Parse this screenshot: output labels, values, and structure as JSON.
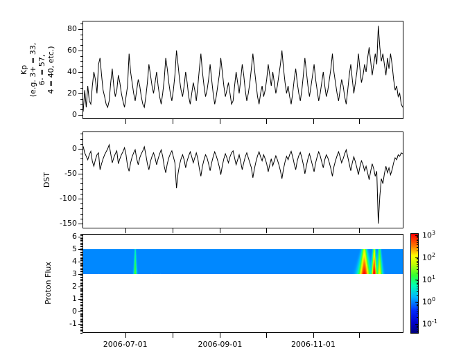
{
  "figure": {
    "background": "#ffffff",
    "line_color": "#000000"
  },
  "xaxis": {
    "days_total": 210,
    "month_tick_days": [
      28,
      59,
      90,
      120,
      151,
      181
    ],
    "labeled_ticks": [
      {
        "day": 28,
        "label": "2006-07-01"
      },
      {
        "day": 90,
        "label": "2006-09-01"
      },
      {
        "day": 151,
        "label": "2006-11-01"
      }
    ]
  },
  "chart_data": [
    {
      "type": "line",
      "id": "kp",
      "ylabel_lines": [
        "Kp",
        "(e.g. 3+ = 33,",
        "6- = 57,",
        "4 = 40, etc.)"
      ],
      "ylim": [
        -4,
        88
      ],
      "yticks": [
        0,
        20,
        40,
        60,
        80
      ],
      "minor_step": 5,
      "color": "#000000",
      "values": [
        3,
        23,
        7,
        27,
        13,
        10,
        27,
        40,
        33,
        20,
        47,
        53,
        37,
        23,
        17,
        10,
        7,
        13,
        30,
        43,
        27,
        17,
        23,
        37,
        30,
        20,
        13,
        7,
        17,
        27,
        57,
        40,
        30,
        20,
        13,
        23,
        33,
        27,
        17,
        10,
        7,
        17,
        30,
        47,
        37,
        27,
        20,
        30,
        40,
        27,
        17,
        10,
        20,
        33,
        53,
        43,
        30,
        20,
        13,
        23,
        37,
        60,
        47,
        33,
        23,
        17,
        27,
        40,
        30,
        17,
        10,
        20,
        30,
        23,
        13,
        27,
        43,
        57,
        40,
        27,
        17,
        23,
        33,
        47,
        33,
        20,
        10,
        17,
        27,
        37,
        53,
        40,
        27,
        17,
        23,
        30,
        20,
        10,
        13,
        27,
        40,
        30,
        20,
        33,
        47,
        37,
        23,
        13,
        20,
        30,
        43,
        57,
        43,
        30,
        17,
        10,
        20,
        27,
        17,
        23,
        33,
        47,
        37,
        27,
        40,
        30,
        20,
        27,
        37,
        47,
        60,
        43,
        30,
        20,
        27,
        17,
        10,
        20,
        33,
        43,
        30,
        20,
        13,
        23,
        37,
        53,
        40,
        27,
        17,
        27,
        37,
        47,
        33,
        23,
        13,
        20,
        30,
        40,
        27,
        17,
        23,
        33,
        43,
        57,
        40,
        30,
        20,
        13,
        23,
        33,
        27,
        17,
        10,
        23,
        37,
        47,
        33,
        20,
        30,
        40,
        57,
        43,
        30,
        37,
        47,
        40,
        53,
        63,
        50,
        37,
        47,
        57,
        47,
        83,
        63,
        50,
        57,
        47,
        37,
        53,
        43,
        57,
        47,
        33,
        23,
        27,
        17,
        20,
        10,
        7
      ]
    },
    {
      "type": "line",
      "id": "dst",
      "ylabel": "DST",
      "ylim": [
        -160,
        35
      ],
      "yticks": [
        0,
        -50,
        -100,
        -150
      ],
      "minor_step": 10,
      "color": "#000000",
      "values": [
        5,
        -8,
        -15,
        -22,
        -12,
        -5,
        -25,
        -35,
        -22,
        -12,
        -8,
        -42,
        -30,
        -20,
        -12,
        -6,
        0,
        8,
        -10,
        -28,
        -18,
        -10,
        -4,
        -30,
        -20,
        -12,
        -6,
        2,
        -12,
        -35,
        -45,
        -28,
        -16,
        -8,
        -2,
        -20,
        -32,
        -18,
        -10,
        -4,
        4,
        -12,
        -30,
        -42,
        -25,
        -15,
        -8,
        -18,
        -32,
        -20,
        -10,
        -2,
        -15,
        -35,
        -48,
        -30,
        -18,
        -10,
        -4,
        -16,
        -28,
        -79,
        -50,
        -32,
        -20,
        -12,
        -22,
        -38,
        -24,
        -14,
        -6,
        -16,
        -28,
        -18,
        -8,
        -20,
        -40,
        -55,
        -35,
        -22,
        -12,
        -18,
        -30,
        -44,
        -28,
        -16,
        -6,
        -14,
        -24,
        -36,
        -52,
        -34,
        -20,
        -10,
        -18,
        -28,
        -16,
        -8,
        -4,
        -18,
        -32,
        -22,
        -12,
        -26,
        -42,
        -28,
        -16,
        -8,
        -18,
        -28,
        -38,
        -58,
        -40,
        -26,
        -14,
        -6,
        -16,
        -24,
        -12,
        -20,
        -30,
        -46,
        -32,
        -20,
        -34,
        -24,
        -14,
        -22,
        -32,
        -44,
        -60,
        -40,
        -26,
        -15,
        -22,
        -12,
        -5,
        -16,
        -30,
        -42,
        -24,
        -14,
        -7,
        -18,
        -32,
        -50,
        -34,
        -20,
        -10,
        -22,
        -34,
        -46,
        -28,
        -16,
        -6,
        -14,
        -26,
        -38,
        -22,
        -12,
        -18,
        -28,
        -40,
        -55,
        -36,
        -24,
        -14,
        -6,
        -16,
        -28,
        -20,
        -10,
        -2,
        -16,
        -30,
        -44,
        -28,
        -16,
        -26,
        -38,
        -52,
        -36,
        -24,
        -32,
        -44,
        -35,
        -48,
        -62,
        -45,
        -30,
        -40,
        -55,
        -45,
        -150,
        -95,
        -60,
        -70,
        -50,
        -35,
        -48,
        -38,
        -52,
        -42,
        -28,
        -18,
        -22,
        -12,
        -15,
        -8,
        -10
      ]
    },
    {
      "type": "heatmap",
      "id": "proton_flux",
      "ylabel": "Proton Flux",
      "ylim": [
        -1.7,
        6.2
      ],
      "yticks": [
        -1,
        0,
        1,
        2,
        3,
        4,
        5,
        6
      ],
      "minor_step": 0.1,
      "band_value_range": [
        3,
        5
      ],
      "color_scale": "log10",
      "log_color_range": [
        -1.44,
        3.12
      ],
      "background_log10_flux": -1.0,
      "events": [
        {
          "day": 34,
          "sigma_days": 0.5,
          "peak_log10_flux": 1.4
        },
        {
          "day": 184.5,
          "sigma_days": 2.0,
          "peak_log10_flux": 3.1
        },
        {
          "day": 191,
          "sigma_days": 1.0,
          "peak_log10_flux": 3.25
        },
        {
          "day": 194.5,
          "sigma_days": 1.0,
          "peak_log10_flux": 2.0
        }
      ]
    },
    {
      "type": "colorbar",
      "id": "flux_colorbar",
      "scale": "log10",
      "tick_labels": [
        "10^3",
        "10^2",
        "10^1",
        "10^0",
        "10^-1"
      ],
      "tick_exponents": [
        3,
        2,
        1,
        0,
        -1
      ],
      "jet_stops": [
        [
          0.0,
          "#00007f"
        ],
        [
          0.1,
          "#0000c8"
        ],
        [
          0.22,
          "#0028ff"
        ],
        [
          0.36,
          "#00b4ff"
        ],
        [
          0.48,
          "#00ffb4"
        ],
        [
          0.58,
          "#32ff32"
        ],
        [
          0.7,
          "#c8ff00"
        ],
        [
          0.78,
          "#ffff00"
        ],
        [
          0.88,
          "#ff7800"
        ],
        [
          1.0,
          "#ff0000"
        ]
      ]
    }
  ]
}
